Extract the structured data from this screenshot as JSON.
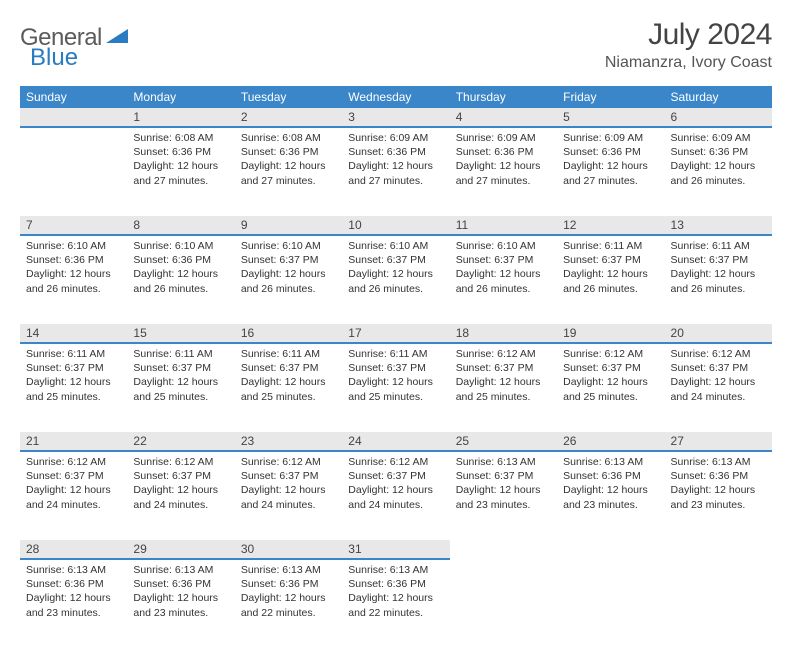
{
  "logo": {
    "word1": "General",
    "word2": "Blue"
  },
  "title": "July 2024",
  "location": "Niamanzra, Ivory Coast",
  "colors": {
    "header_bg": "#3a86c8",
    "header_text": "#ffffff",
    "daynum_bg": "#e8e8e8",
    "daynum_border": "#3a86c8",
    "logo_gray": "#5b5b5b",
    "logo_blue": "#2a7bbf"
  },
  "weekdays": [
    "Sunday",
    "Monday",
    "Tuesday",
    "Wednesday",
    "Thursday",
    "Friday",
    "Saturday"
  ],
  "weeks": [
    [
      {
        "n": "",
        "lines": []
      },
      {
        "n": "1",
        "lines": [
          "Sunrise: 6:08 AM",
          "Sunset: 6:36 PM",
          "Daylight: 12 hours",
          "and 27 minutes."
        ]
      },
      {
        "n": "2",
        "lines": [
          "Sunrise: 6:08 AM",
          "Sunset: 6:36 PM",
          "Daylight: 12 hours",
          "and 27 minutes."
        ]
      },
      {
        "n": "3",
        "lines": [
          "Sunrise: 6:09 AM",
          "Sunset: 6:36 PM",
          "Daylight: 12 hours",
          "and 27 minutes."
        ]
      },
      {
        "n": "4",
        "lines": [
          "Sunrise: 6:09 AM",
          "Sunset: 6:36 PM",
          "Daylight: 12 hours",
          "and 27 minutes."
        ]
      },
      {
        "n": "5",
        "lines": [
          "Sunrise: 6:09 AM",
          "Sunset: 6:36 PM",
          "Daylight: 12 hours",
          "and 27 minutes."
        ]
      },
      {
        "n": "6",
        "lines": [
          "Sunrise: 6:09 AM",
          "Sunset: 6:36 PM",
          "Daylight: 12 hours",
          "and 26 minutes."
        ]
      }
    ],
    [
      {
        "n": "7",
        "lines": [
          "Sunrise: 6:10 AM",
          "Sunset: 6:36 PM",
          "Daylight: 12 hours",
          "and 26 minutes."
        ]
      },
      {
        "n": "8",
        "lines": [
          "Sunrise: 6:10 AM",
          "Sunset: 6:36 PM",
          "Daylight: 12 hours",
          "and 26 minutes."
        ]
      },
      {
        "n": "9",
        "lines": [
          "Sunrise: 6:10 AM",
          "Sunset: 6:37 PM",
          "Daylight: 12 hours",
          "and 26 minutes."
        ]
      },
      {
        "n": "10",
        "lines": [
          "Sunrise: 6:10 AM",
          "Sunset: 6:37 PM",
          "Daylight: 12 hours",
          "and 26 minutes."
        ]
      },
      {
        "n": "11",
        "lines": [
          "Sunrise: 6:10 AM",
          "Sunset: 6:37 PM",
          "Daylight: 12 hours",
          "and 26 minutes."
        ]
      },
      {
        "n": "12",
        "lines": [
          "Sunrise: 6:11 AM",
          "Sunset: 6:37 PM",
          "Daylight: 12 hours",
          "and 26 minutes."
        ]
      },
      {
        "n": "13",
        "lines": [
          "Sunrise: 6:11 AM",
          "Sunset: 6:37 PM",
          "Daylight: 12 hours",
          "and 26 minutes."
        ]
      }
    ],
    [
      {
        "n": "14",
        "lines": [
          "Sunrise: 6:11 AM",
          "Sunset: 6:37 PM",
          "Daylight: 12 hours",
          "and 25 minutes."
        ]
      },
      {
        "n": "15",
        "lines": [
          "Sunrise: 6:11 AM",
          "Sunset: 6:37 PM",
          "Daylight: 12 hours",
          "and 25 minutes."
        ]
      },
      {
        "n": "16",
        "lines": [
          "Sunrise: 6:11 AM",
          "Sunset: 6:37 PM",
          "Daylight: 12 hours",
          "and 25 minutes."
        ]
      },
      {
        "n": "17",
        "lines": [
          "Sunrise: 6:11 AM",
          "Sunset: 6:37 PM",
          "Daylight: 12 hours",
          "and 25 minutes."
        ]
      },
      {
        "n": "18",
        "lines": [
          "Sunrise: 6:12 AM",
          "Sunset: 6:37 PM",
          "Daylight: 12 hours",
          "and 25 minutes."
        ]
      },
      {
        "n": "19",
        "lines": [
          "Sunrise: 6:12 AM",
          "Sunset: 6:37 PM",
          "Daylight: 12 hours",
          "and 25 minutes."
        ]
      },
      {
        "n": "20",
        "lines": [
          "Sunrise: 6:12 AM",
          "Sunset: 6:37 PM",
          "Daylight: 12 hours",
          "and 24 minutes."
        ]
      }
    ],
    [
      {
        "n": "21",
        "lines": [
          "Sunrise: 6:12 AM",
          "Sunset: 6:37 PM",
          "Daylight: 12 hours",
          "and 24 minutes."
        ]
      },
      {
        "n": "22",
        "lines": [
          "Sunrise: 6:12 AM",
          "Sunset: 6:37 PM",
          "Daylight: 12 hours",
          "and 24 minutes."
        ]
      },
      {
        "n": "23",
        "lines": [
          "Sunrise: 6:12 AM",
          "Sunset: 6:37 PM",
          "Daylight: 12 hours",
          "and 24 minutes."
        ]
      },
      {
        "n": "24",
        "lines": [
          "Sunrise: 6:12 AM",
          "Sunset: 6:37 PM",
          "Daylight: 12 hours",
          "and 24 minutes."
        ]
      },
      {
        "n": "25",
        "lines": [
          "Sunrise: 6:13 AM",
          "Sunset: 6:37 PM",
          "Daylight: 12 hours",
          "and 23 minutes."
        ]
      },
      {
        "n": "26",
        "lines": [
          "Sunrise: 6:13 AM",
          "Sunset: 6:36 PM",
          "Daylight: 12 hours",
          "and 23 minutes."
        ]
      },
      {
        "n": "27",
        "lines": [
          "Sunrise: 6:13 AM",
          "Sunset: 6:36 PM",
          "Daylight: 12 hours",
          "and 23 minutes."
        ]
      }
    ],
    [
      {
        "n": "28",
        "lines": [
          "Sunrise: 6:13 AM",
          "Sunset: 6:36 PM",
          "Daylight: 12 hours",
          "and 23 minutes."
        ]
      },
      {
        "n": "29",
        "lines": [
          "Sunrise: 6:13 AM",
          "Sunset: 6:36 PM",
          "Daylight: 12 hours",
          "and 23 minutes."
        ]
      },
      {
        "n": "30",
        "lines": [
          "Sunrise: 6:13 AM",
          "Sunset: 6:36 PM",
          "Daylight: 12 hours",
          "and 22 minutes."
        ]
      },
      {
        "n": "31",
        "lines": [
          "Sunrise: 6:13 AM",
          "Sunset: 6:36 PM",
          "Daylight: 12 hours",
          "and 22 minutes."
        ]
      },
      {
        "n": "",
        "lines": []
      },
      {
        "n": "",
        "lines": []
      },
      {
        "n": "",
        "lines": []
      }
    ]
  ]
}
